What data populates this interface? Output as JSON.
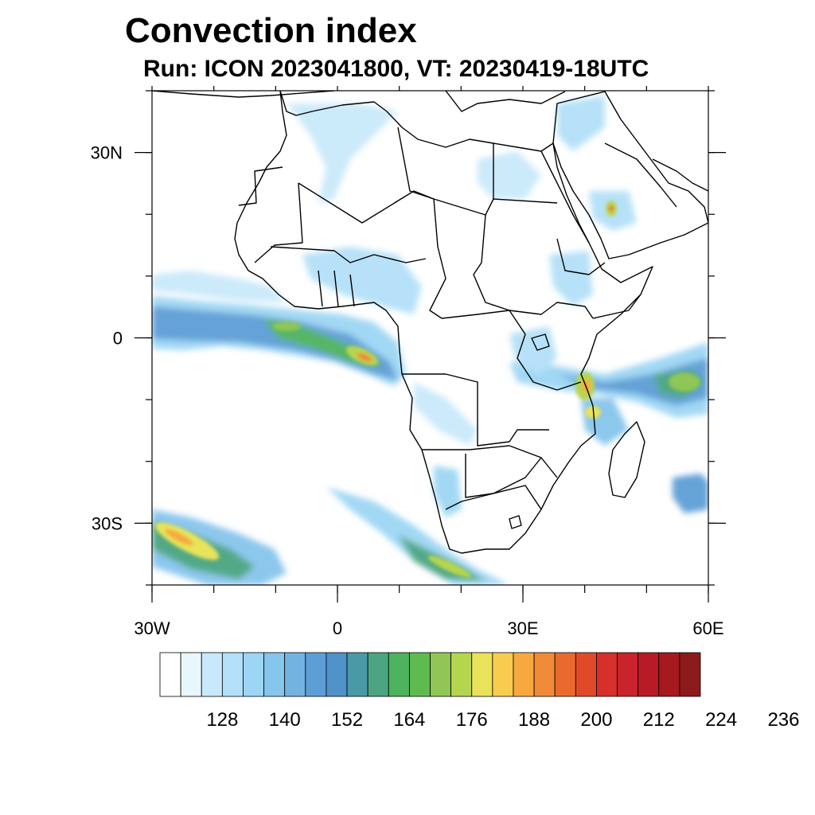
{
  "title": "Convection index",
  "subtitle": "Run: ICON 2023041800,  VT: 20230419-18UTC",
  "map": {
    "region": "Africa",
    "lon_range": [
      -30,
      60
    ],
    "lat_range": [
      -40,
      40
    ],
    "x_ticks": [
      {
        "lon": -30,
        "label": "30W"
      },
      {
        "lon": 0,
        "label": "0"
      },
      {
        "lon": 30,
        "label": "30E"
      },
      {
        "lon": 60,
        "label": "60E"
      }
    ],
    "y_ticks": [
      {
        "lat": 30,
        "label": "30N"
      },
      {
        "lat": 0,
        "label": "0"
      },
      {
        "lat": -30,
        "label": "30S"
      }
    ]
  },
  "colorbar": {
    "labels": [
      "128",
      "140",
      "152",
      "164",
      "176",
      "188",
      "200",
      "212",
      "224",
      "236"
    ],
    "colors": [
      "#ffffff",
      "#e8f6fd",
      "#c9e9fa",
      "#b3e0f8",
      "#9dd6f4",
      "#86c5ec",
      "#73b3e2",
      "#5d9ed6",
      "#4f91c9",
      "#4a99a6",
      "#4aa580",
      "#4db35c",
      "#5fbb4f",
      "#8fc654",
      "#b6d54f",
      "#e8e35a",
      "#f7cc4f",
      "#f7a940",
      "#f08a38",
      "#ea6a2e",
      "#e04a28",
      "#d72f2a",
      "#c9232b",
      "#b81b25",
      "#a5191f",
      "#8d1a1a"
    ]
  }
}
